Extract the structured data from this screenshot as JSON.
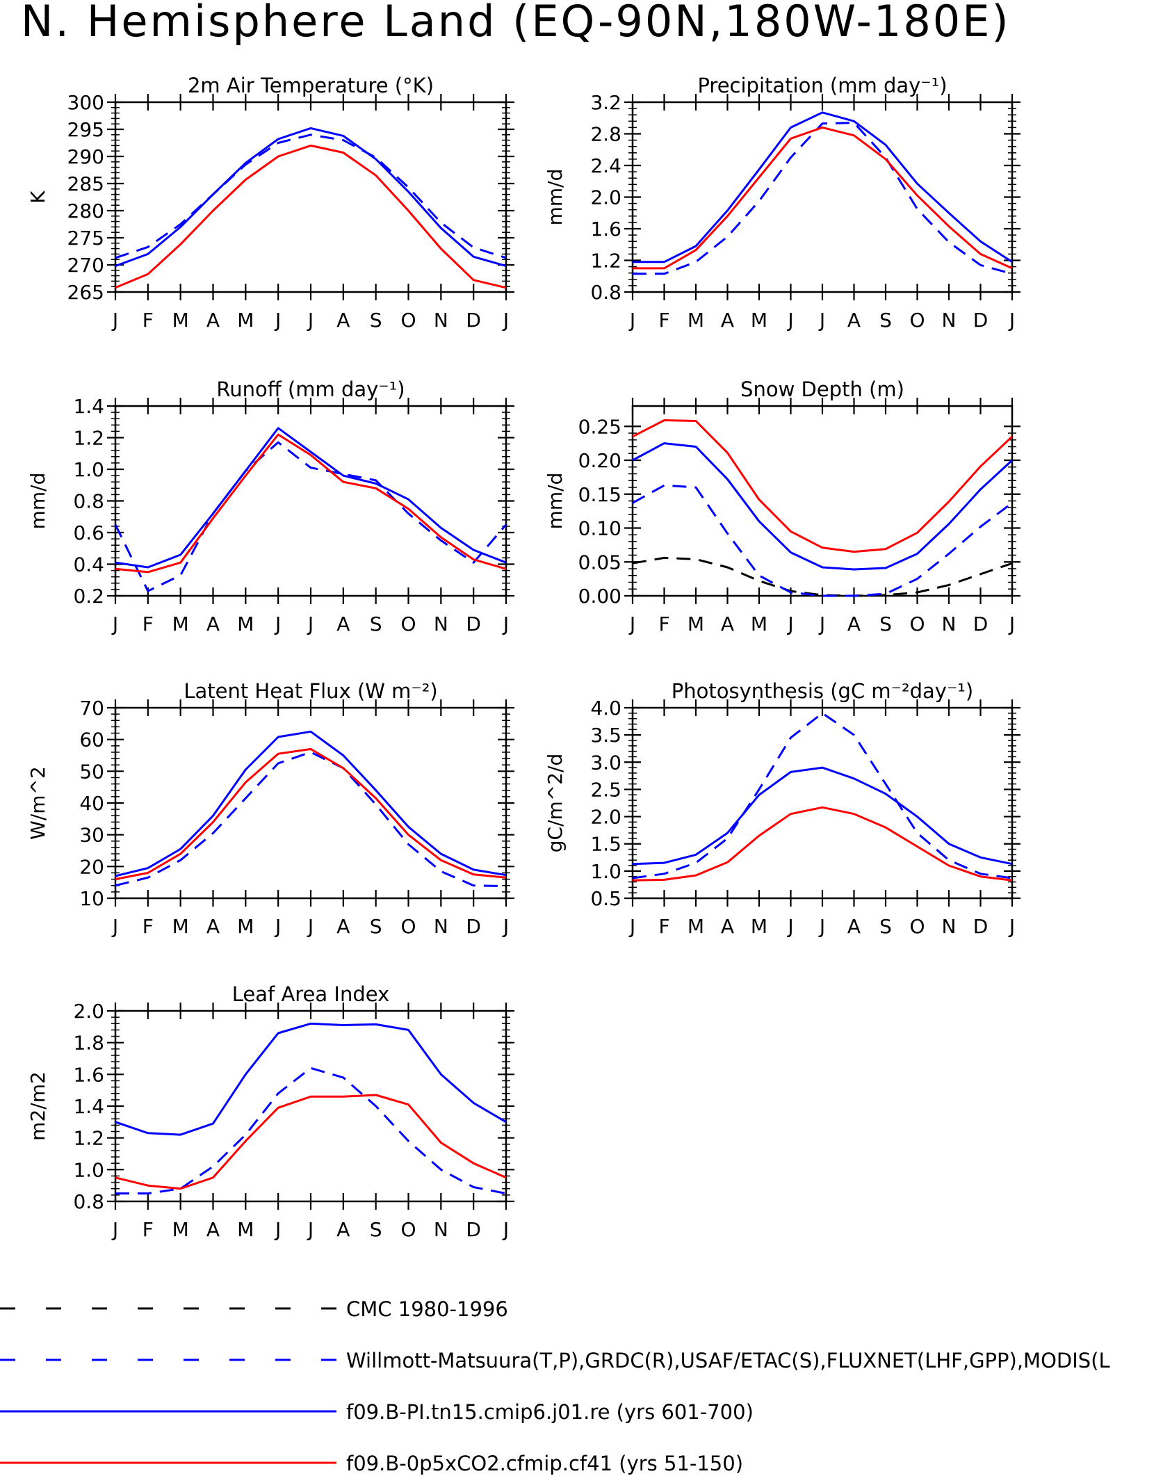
{
  "figure": {
    "title": "N. Hemisphere Land (EQ-90N,180W-180E)"
  },
  "chart_data": [
    {
      "type": "line",
      "id": "tsa",
      "title": "2m Air Temperature (°K)",
      "ylabel": "K",
      "xlabel": "",
      "categories": [
        "J",
        "F",
        "M",
        "A",
        "M",
        "J",
        "J",
        "A",
        "S",
        "O",
        "N",
        "D",
        "J"
      ],
      "ylim": [
        265,
        300
      ],
      "yticks": [
        "265",
        "270",
        "275",
        "280",
        "285",
        "290",
        "295",
        "300"
      ],
      "grid": false,
      "series": [
        {
          "name": "Willmott-Matsuura(T,P),GRDC(R),USAF/ETAC(S),FLUXNET(LHF,GPP),MODIS(L",
          "color": "#0000ff",
          "dash": true,
          "values": [
            271.3,
            273.3,
            277.5,
            283.0,
            288.5,
            292.5,
            294.0,
            293.0,
            289.8,
            284.3,
            277.8,
            273.2,
            271.3
          ]
        },
        {
          "name": "f09.B-PI.tn15.cmip6.j01.re (yrs 601-700)",
          "color": "#0000ff",
          "dash": false,
          "values": [
            269.8,
            272.0,
            277.0,
            283.0,
            288.8,
            293.2,
            295.2,
            293.8,
            289.5,
            283.5,
            276.8,
            271.5,
            269.8
          ]
        },
        {
          "name": "f09.B-0p5xCO2.cfmip.cf41 (yrs 51-150)",
          "color": "#ff0000",
          "dash": false,
          "values": [
            265.8,
            268.3,
            273.8,
            280.0,
            285.7,
            290.0,
            292.0,
            290.7,
            286.5,
            280.0,
            273.0,
            267.2,
            265.8
          ]
        }
      ]
    },
    {
      "type": "line",
      "id": "prec",
      "title": "Precipitation (mm day⁻¹)",
      "ylabel": "mm/d",
      "xlabel": "",
      "categories": [
        "J",
        "F",
        "M",
        "A",
        "M",
        "J",
        "J",
        "A",
        "S",
        "O",
        "N",
        "D",
        "J"
      ],
      "ylim": [
        0.8,
        3.2
      ],
      "yticks": [
        "0.8",
        "1.2",
        "1.6",
        "2.0",
        "2.4",
        "2.8",
        "3.2"
      ],
      "grid": false,
      "series": [
        {
          "name": "Willmott-Matsuura(T,P),GRDC(R),USAF/ETAC(S),FLUXNET(LHF,GPP),MODIS(L",
          "color": "#0000ff",
          "dash": true,
          "values": [
            1.03,
            1.03,
            1.18,
            1.5,
            1.95,
            2.5,
            2.93,
            2.94,
            2.5,
            1.85,
            1.43,
            1.14,
            1.03
          ]
        },
        {
          "name": "f09.B-PI.tn15.cmip6.j01.re (yrs 601-700)",
          "color": "#0000ff",
          "dash": false,
          "values": [
            1.18,
            1.18,
            1.38,
            1.83,
            2.35,
            2.88,
            3.07,
            2.96,
            2.66,
            2.17,
            1.8,
            1.44,
            1.18
          ]
        },
        {
          "name": "f09.B-0p5xCO2.cfmip.cf41 (yrs 51-150)",
          "color": "#ff0000",
          "dash": false,
          "values": [
            1.1,
            1.1,
            1.33,
            1.76,
            2.25,
            2.74,
            2.88,
            2.78,
            2.48,
            2.02,
            1.63,
            1.28,
            1.1
          ]
        }
      ]
    },
    {
      "type": "line",
      "id": "runoff",
      "title": "Runoff (mm day⁻¹)",
      "ylabel": "mm/d",
      "xlabel": "",
      "categories": [
        "J",
        "F",
        "M",
        "A",
        "M",
        "J",
        "J",
        "A",
        "S",
        "O",
        "N",
        "D",
        "J"
      ],
      "ylim": [
        0.2,
        1.4
      ],
      "yticks": [
        "0.2",
        "0.4",
        "0.6",
        "0.8",
        "1.0",
        "1.2",
        "1.4"
      ],
      "grid": false,
      "series": [
        {
          "name": "Willmott-Matsuura(T,P),GRDC(R),USAF/ETAC(S),FLUXNET(LHF,GPP),MODIS(L",
          "color": "#0000ff",
          "dash": true,
          "values": [
            0.65,
            0.23,
            0.33,
            0.72,
            0.99,
            1.17,
            1.01,
            0.97,
            0.93,
            0.72,
            0.55,
            0.41,
            0.65
          ]
        },
        {
          "name": "f09.B-PI.tn15.cmip6.j01.re (yrs 601-700)",
          "color": "#0000ff",
          "dash": false,
          "values": [
            0.41,
            0.38,
            0.46,
            0.72,
            0.99,
            1.26,
            1.11,
            0.96,
            0.91,
            0.81,
            0.63,
            0.49,
            0.41
          ]
        },
        {
          "name": "f09.B-0p5xCO2.cfmip.cf41 (yrs 51-150)",
          "color": "#ff0000",
          "dash": false,
          "values": [
            0.37,
            0.35,
            0.41,
            0.69,
            0.96,
            1.22,
            1.09,
            0.92,
            0.88,
            0.75,
            0.57,
            0.43,
            0.37
          ]
        }
      ]
    },
    {
      "type": "line",
      "id": "snowdp",
      "title": "Snow Depth (m)",
      "ylabel": "mm/d",
      "xlabel": "",
      "categories": [
        "J",
        "F",
        "M",
        "A",
        "M",
        "J",
        "J",
        "A",
        "S",
        "O",
        "N",
        "D",
        "J"
      ],
      "ylim": [
        0.0,
        0.28
      ],
      "yticks": [
        "0.00",
        "0.05",
        "0.10",
        "0.15",
        "0.20",
        "0.25"
      ],
      "grid": false,
      "series": [
        {
          "name": "CMC 1980-1996",
          "color": "#000000",
          "dash": true,
          "values": [
            0.048,
            0.056,
            0.054,
            0.042,
            0.022,
            0.007,
            0.001,
            0.0,
            0.001,
            0.005,
            0.016,
            0.032,
            0.048
          ]
        },
        {
          "name": "Willmott-Matsuura(T,P),GRDC(R),USAF/ETAC(S),FLUXNET(LHF,GPP),MODIS(L",
          "color": "#0000ff",
          "dash": true,
          "values": [
            0.137,
            0.163,
            0.16,
            0.092,
            0.03,
            0.005,
            0.0,
            0.0,
            0.003,
            0.025,
            0.062,
            0.102,
            0.137
          ]
        },
        {
          "name": "f09.B-PI.tn15.cmip6.j01.re (yrs 601-700)",
          "color": "#0000ff",
          "dash": false,
          "values": [
            0.2,
            0.225,
            0.22,
            0.172,
            0.11,
            0.064,
            0.042,
            0.039,
            0.041,
            0.062,
            0.106,
            0.157,
            0.2
          ]
        },
        {
          "name": "f09.B-0p5xCO2.cfmip.cf41 (yrs 51-150)",
          "color": "#ff0000",
          "dash": false,
          "values": [
            0.235,
            0.259,
            0.258,
            0.211,
            0.142,
            0.095,
            0.071,
            0.065,
            0.069,
            0.093,
            0.139,
            0.191,
            0.235
          ]
        }
      ]
    },
    {
      "type": "line",
      "id": "lhf",
      "title": "Latent Heat Flux (W m⁻²)",
      "ylabel": "W/m^2",
      "xlabel": "",
      "categories": [
        "J",
        "F",
        "M",
        "A",
        "M",
        "J",
        "J",
        "A",
        "S",
        "O",
        "N",
        "D",
        "J"
      ],
      "ylim": [
        10,
        70
      ],
      "yticks": [
        "10",
        "20",
        "30",
        "40",
        "50",
        "60",
        "70"
      ],
      "grid": false,
      "series": [
        {
          "name": "Willmott-Matsuura(T,P),GRDC(R),USAF/ETAC(S),FLUXNET(LHF,GPP),MODIS(L",
          "color": "#0000ff",
          "dash": true,
          "values": [
            14.0,
            16.5,
            22.0,
            30.5,
            41.5,
            52.5,
            56.0,
            51.0,
            39.5,
            27.0,
            18.5,
            14.0,
            13.8
          ]
        },
        {
          "name": "f09.B-PI.tn15.cmip6.j01.re (yrs 601-700)",
          "color": "#0000ff",
          "dash": false,
          "values": [
            17.0,
            19.5,
            25.5,
            36.0,
            50.5,
            60.8,
            62.5,
            55.0,
            44.0,
            32.5,
            24.0,
            19.0,
            17.3
          ]
        },
        {
          "name": "f09.B-0p5xCO2.cfmip.cf41 (yrs 51-150)",
          "color": "#ff0000",
          "dash": false,
          "values": [
            16.0,
            18.0,
            24.0,
            34.0,
            46.5,
            55.5,
            57.0,
            51.0,
            41.5,
            30.0,
            22.0,
            17.5,
            16.5
          ]
        }
      ]
    },
    {
      "type": "line",
      "id": "gpp",
      "title": "Photosynthesis (gC m⁻²day⁻¹)",
      "ylabel": "gC/m^2/d",
      "xlabel": "",
      "categories": [
        "J",
        "F",
        "M",
        "A",
        "M",
        "J",
        "J",
        "A",
        "S",
        "O",
        "N",
        "D",
        "J"
      ],
      "ylim": [
        0.5,
        4.0
      ],
      "yticks": [
        "0.5",
        "1.0",
        "1.5",
        "2.0",
        "2.5",
        "3.0",
        "3.5",
        "4.0"
      ],
      "grid": false,
      "series": [
        {
          "name": "Willmott-Matsuura(T,P),GRDC(R),USAF/ETAC(S),FLUXNET(LHF,GPP),MODIS(L",
          "color": "#0000ff",
          "dash": true,
          "values": [
            0.87,
            0.95,
            1.15,
            1.6,
            2.5,
            3.45,
            3.9,
            3.5,
            2.6,
            1.7,
            1.2,
            0.95,
            0.87
          ]
        },
        {
          "name": "f09.B-PI.tn15.cmip6.j01.re (yrs 601-700)",
          "color": "#0000ff",
          "dash": false,
          "values": [
            1.13,
            1.15,
            1.3,
            1.7,
            2.4,
            2.82,
            2.9,
            2.7,
            2.42,
            2.0,
            1.5,
            1.25,
            1.13
          ]
        },
        {
          "name": "f09.B-0p5xCO2.cfmip.cf41 (yrs 51-150)",
          "color": "#ff0000",
          "dash": false,
          "values": [
            0.83,
            0.84,
            0.92,
            1.16,
            1.65,
            2.05,
            2.17,
            2.05,
            1.8,
            1.45,
            1.1,
            0.9,
            0.83
          ]
        }
      ]
    },
    {
      "type": "line",
      "id": "lai",
      "title": "Leaf Area Index",
      "ylabel": "m2/m2",
      "xlabel": "",
      "categories": [
        "J",
        "F",
        "M",
        "A",
        "M",
        "J",
        "J",
        "A",
        "S",
        "O",
        "N",
        "D",
        "J"
      ],
      "ylim": [
        0.8,
        2.0
      ],
      "yticks": [
        "0.8",
        "1.0",
        "1.2",
        "1.4",
        "1.6",
        "1.8",
        "2.0"
      ],
      "grid": false,
      "series": [
        {
          "name": "Willmott-Matsuura(T,P),GRDC(R),USAF/ETAC(S),FLUXNET(LHF,GPP),MODIS(L",
          "color": "#0000ff",
          "dash": true,
          "values": [
            0.85,
            0.85,
            0.88,
            1.02,
            1.22,
            1.48,
            1.64,
            1.58,
            1.4,
            1.18,
            1.0,
            0.89,
            0.85
          ]
        },
        {
          "name": "f09.B-PI.tn15.cmip6.j01.re (yrs 601-700)",
          "color": "#0000ff",
          "dash": false,
          "values": [
            1.3,
            1.23,
            1.22,
            1.29,
            1.6,
            1.86,
            1.92,
            1.91,
            1.915,
            1.88,
            1.6,
            1.42,
            1.3
          ]
        },
        {
          "name": "f09.B-0p5xCO2.cfmip.cf41 (yrs 51-150)",
          "color": "#ff0000",
          "dash": false,
          "values": [
            0.95,
            0.9,
            0.88,
            0.95,
            1.18,
            1.39,
            1.46,
            1.46,
            1.47,
            1.41,
            1.17,
            1.04,
            0.95
          ]
        }
      ]
    }
  ],
  "legend": {
    "placement": "bottom",
    "entries": [
      {
        "label": "CMC 1980-1996",
        "color": "#000000",
        "dash": true
      },
      {
        "label": "Willmott-Matsuura(T,P),GRDC(R),USAF/ETAC(S),FLUXNET(LHF,GPP),MODIS(L",
        "color": "#0000ff",
        "dash": true
      },
      {
        "label": "f09.B-PI.tn15.cmip6.j01.re (yrs 601-700)",
        "color": "#0000ff",
        "dash": false
      },
      {
        "label": "f09.B-0p5xCO2.cfmip.cf41 (yrs 51-150)",
        "color": "#ff0000",
        "dash": false
      }
    ]
  }
}
